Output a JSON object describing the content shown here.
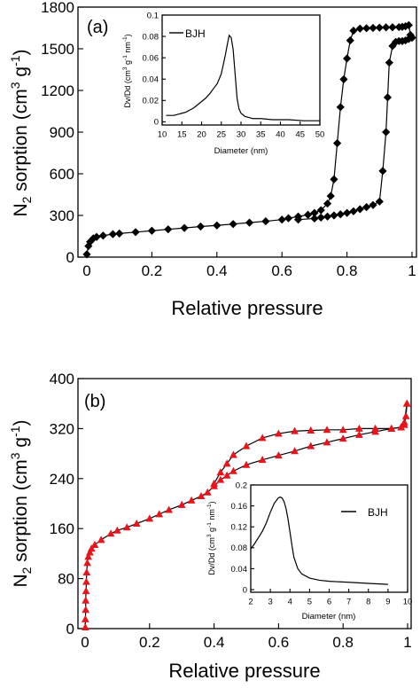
{
  "chart_data": [
    {
      "type": "line",
      "panel_label": "(a)",
      "xlabel": "Relative pressure",
      "ylabel": "N2 sorption (cm3 g-1)",
      "xlim": [
        0,
        1
      ],
      "ylim": [
        0,
        1800
      ],
      "xticks": [
        0,
        0.2,
        0.4,
        0.6,
        0.8,
        1
      ],
      "xtick_labels": [
        "0",
        "0.2",
        "0.4",
        "0.6",
        "0.8",
        "1"
      ],
      "yticks": [
        0,
        300,
        600,
        900,
        1200,
        1500,
        1800
      ],
      "ytick_labels": [
        "0",
        "300",
        "600",
        "900",
        "1200",
        "1500",
        "1800"
      ],
      "marker_color": "#000000",
      "marker": "diamond",
      "series": [
        {
          "x": [
            0.0,
            0.005,
            0.01,
            0.02,
            0.03,
            0.05,
            0.08,
            0.1,
            0.15,
            0.2,
            0.25,
            0.3,
            0.35,
            0.4,
            0.45,
            0.5,
            0.55,
            0.6,
            0.62,
            0.65,
            0.68,
            0.7,
            0.72,
            0.74,
            0.75,
            0.76,
            0.77,
            0.78,
            0.79,
            0.8,
            0.81,
            0.82,
            0.84,
            0.86,
            0.88,
            0.9,
            0.92,
            0.94,
            0.96,
            0.97,
            0.98,
            0.99,
            0.995,
            1.0
          ],
          "values": [
            20,
            80,
            110,
            135,
            145,
            155,
            165,
            170,
            180,
            190,
            200,
            210,
            220,
            228,
            238,
            248,
            258,
            270,
            280,
            292,
            305,
            318,
            338,
            385,
            440,
            560,
            820,
            1080,
            1280,
            1430,
            1560,
            1630,
            1645,
            1648,
            1650,
            1652,
            1654,
            1655,
            1656,
            1658,
            1662,
            1670,
            1600,
            1580
          ]
        },
        {
          "x": [
            1.0,
            0.99,
            0.98,
            0.97,
            0.96,
            0.95,
            0.94,
            0.93,
            0.925,
            0.92,
            0.91,
            0.9,
            0.88,
            0.86,
            0.84,
            0.82,
            0.8,
            0.78,
            0.76,
            0.74,
            0.72,
            0.7,
            0.65
          ],
          "values": [
            1580,
            1570,
            1560,
            1555,
            1555,
            1550,
            1520,
            1400,
            1150,
            900,
            620,
            400,
            375,
            360,
            345,
            330,
            318,
            308,
            300,
            292,
            285,
            278,
            270
          ]
        }
      ],
      "inset": {
        "type": "line",
        "legend": "BJH",
        "xlabel": "Diameter (nm)",
        "ylabel": "Dv/Dd (cm3 g-1 nm-1)",
        "xlim": [
          10,
          50
        ],
        "ylim": [
          -0.003,
          0.1
        ],
        "xticks": [
          10,
          15,
          20,
          25,
          30,
          35,
          40,
          45,
          50
        ],
        "xtick_labels": [
          "10",
          "15",
          "20",
          "25",
          "30",
          "35",
          "40",
          "45",
          "50"
        ],
        "yticks": [
          0,
          0.02,
          0.04,
          0.06,
          0.08,
          0.1
        ],
        "ytick_labels": [
          "0",
          "0.02",
          "0.04",
          "0.06",
          "0.08",
          "0.1"
        ],
        "x": [
          11,
          12,
          13,
          14,
          15,
          16,
          17,
          18,
          19,
          20,
          21,
          22,
          23,
          24,
          25,
          26,
          26.5,
          27,
          27.5,
          28,
          28.5,
          29,
          29.5,
          30,
          31,
          32,
          33,
          35,
          38,
          42,
          46,
          50
        ],
        "values": [
          0.006,
          0.006,
          0.006,
          0.007,
          0.008,
          0.009,
          0.011,
          0.013,
          0.016,
          0.019,
          0.022,
          0.026,
          0.031,
          0.036,
          0.045,
          0.062,
          0.072,
          0.081,
          0.079,
          0.068,
          0.045,
          0.022,
          0.012,
          0.008,
          0.005,
          0.004,
          0.003,
          0.003,
          0.002,
          0.002,
          0.001,
          0.001
        ]
      }
    },
    {
      "type": "line",
      "panel_label": "(b)",
      "xlabel": "Relative pressure",
      "ylabel": "N2 sorption (cm3 g-1)",
      "xlim": [
        0,
        1
      ],
      "ylim": [
        0,
        400
      ],
      "xticks": [
        0,
        0.2,
        0.4,
        0.6,
        0.8,
        1
      ],
      "xtick_labels": [
        "0",
        "0.2",
        "0.4",
        "0.6",
        "0.8",
        "1"
      ],
      "yticks": [
        0,
        80,
        160,
        240,
        320,
        400
      ],
      "ytick_labels": [
        "0",
        "80",
        "160",
        "240",
        "320",
        "400"
      ],
      "marker_color": "#e8141b",
      "marker": "triangle",
      "series": [
        {
          "x": [
            0.001,
            0.001,
            0.002,
            0.002,
            0.003,
            0.004,
            0.005,
            0.007,
            0.01,
            0.015,
            0.02,
            0.03,
            0.05,
            0.08,
            0.1,
            0.13,
            0.16,
            0.2,
            0.23,
            0.26,
            0.3,
            0.33,
            0.36,
            0.38,
            0.4,
            0.42,
            0.44,
            0.46,
            0.5,
            0.55,
            0.6,
            0.65,
            0.7,
            0.75,
            0.8,
            0.85,
            0.9,
            0.95,
            0.98,
            0.99,
            0.995,
            0.998
          ],
          "values": [
            2,
            15,
            30,
            45,
            60,
            75,
            90,
            105,
            115,
            122,
            128,
            134,
            142,
            152,
            157,
            162,
            168,
            176,
            183,
            190,
            198,
            205,
            212,
            218,
            228,
            238,
            245,
            252,
            262,
            270,
            277,
            284,
            292,
            298,
            304,
            310,
            315,
            320,
            322,
            326,
            340,
            360
          ]
        },
        {
          "x": [
            0.998,
            0.99,
            0.98,
            0.95,
            0.9,
            0.85,
            0.8,
            0.75,
            0.7,
            0.65,
            0.6,
            0.55,
            0.5,
            0.46,
            0.44,
            0.42,
            0.4
          ],
          "values": [
            360,
            330,
            322,
            320,
            320,
            320,
            318,
            318,
            317,
            316,
            312,
            305,
            292,
            278,
            264,
            250,
            232
          ]
        }
      ],
      "inset": {
        "type": "line",
        "legend": "BJH",
        "xlabel": "Diameter (nm)",
        "ylabel": "Dv/Dd (cm3 g-1 nm-1)",
        "xlim": [
          2,
          10
        ],
        "ylim": [
          -0.005,
          0.2
        ],
        "xticks": [
          2,
          3,
          4,
          5,
          6,
          7,
          8,
          9,
          10
        ],
        "xtick_labels": [
          "2",
          "3",
          "4",
          "5",
          "6",
          "7",
          "8",
          "9",
          "10"
        ],
        "yticks": [
          0,
          0.04,
          0.08,
          0.12,
          0.16,
          0.2
        ],
        "ytick_labels": [
          "0",
          "0.04",
          "0.08",
          "0.12",
          "0.16",
          "0.2"
        ],
        "x": [
          2.0,
          2.2,
          2.4,
          2.6,
          2.8,
          3.0,
          3.2,
          3.4,
          3.5,
          3.6,
          3.7,
          3.8,
          3.9,
          4.0,
          4.1,
          4.2,
          4.4,
          4.6,
          5.0,
          5.5,
          6.0,
          7.0,
          8.0,
          9.0
        ],
        "values": [
          0.078,
          0.088,
          0.1,
          0.112,
          0.128,
          0.148,
          0.165,
          0.175,
          0.177,
          0.175,
          0.168,
          0.155,
          0.135,
          0.11,
          0.085,
          0.062,
          0.04,
          0.03,
          0.022,
          0.018,
          0.016,
          0.014,
          0.012,
          0.01
        ]
      }
    }
  ]
}
